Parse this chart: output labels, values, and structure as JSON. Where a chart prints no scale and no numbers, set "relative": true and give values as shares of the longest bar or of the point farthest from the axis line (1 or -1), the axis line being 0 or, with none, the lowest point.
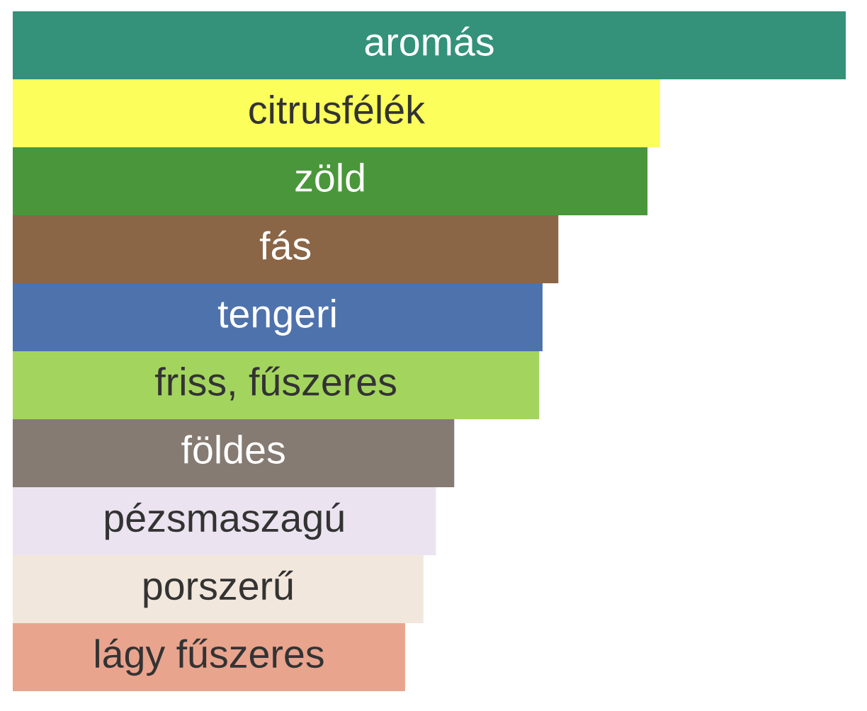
{
  "chart_data": {
    "type": "bar",
    "orientation": "horizontal",
    "relative": true,
    "categories": [
      "aromás",
      "citrusfélék",
      "zöld",
      "fás",
      "tengeri",
      "friss, fűszeres",
      "földes",
      "pézsmaszagú",
      "porszerű",
      "lágy fűszeres"
    ],
    "values": [
      1,
      0.777,
      0.762,
      0.655,
      0.636,
      0.632,
      0.53,
      0.508,
      0.493,
      0.471
    ],
    "colors": [
      "#34917a",
      "#fbfe5b",
      "#4a973b",
      "#8a6546",
      "#4e72ac",
      "#a3d55e",
      "#857b72",
      "#ebe3f0",
      "#f2e7dc",
      "#e9a48e"
    ]
  }
}
